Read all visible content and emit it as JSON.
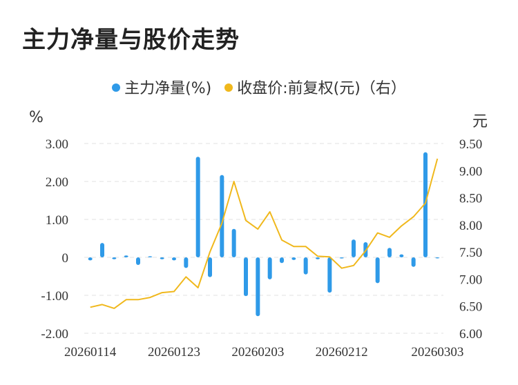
{
  "title": "主力净量与股价走势",
  "legend": [
    {
      "label": "主力净量(%)",
      "color": "#2f9ae8"
    },
    {
      "label": "收盘价:前复权(元)（右）",
      "color": "#f0b81c"
    }
  ],
  "units": {
    "left": "%",
    "right": "元"
  },
  "colors": {
    "bar": "#2f9ae8",
    "line": "#f0b81c",
    "grid": "#e2e2e2"
  },
  "chart_data": {
    "type": "bar+line",
    "x": [
      "20260114",
      "20260115",
      "20260116",
      "20260119",
      "20260120",
      "20260121",
      "20260122",
      "20260123",
      "20260126",
      "20260127",
      "20260128",
      "20260129",
      "20260130",
      "20260202",
      "20260203",
      "20260204",
      "20260205",
      "20260206",
      "20260209",
      "20260210",
      "20260211",
      "20260212",
      "20260213",
      "20260216",
      "20260224",
      "20260225",
      "20260226",
      "20260227",
      "20260302",
      "20260303"
    ],
    "x_tick_labels": [
      "20260114",
      "20260123",
      "20260203",
      "20260212",
      "20260303"
    ],
    "series": [
      {
        "name": "主力净量(%)",
        "type": "bar",
        "axis": "left",
        "values": [
          -0.08,
          0.38,
          -0.05,
          0.05,
          -0.2,
          0.03,
          -0.05,
          -0.08,
          -0.28,
          2.65,
          -0.52,
          2.17,
          0.75,
          -1.02,
          -1.55,
          -0.58,
          -0.15,
          -0.07,
          -0.45,
          -0.05,
          -0.93,
          -0.03,
          0.47,
          0.4,
          -0.68,
          0.25,
          0.08,
          -0.25,
          2.77,
          0
        ]
      },
      {
        "name": "收盘价:前复权(元)（右）",
        "type": "line",
        "axis": "right",
        "values": [
          6.48,
          6.53,
          6.46,
          6.62,
          6.62,
          6.66,
          6.75,
          6.77,
          7.04,
          6.84,
          7.5,
          8.03,
          8.8,
          8.08,
          7.92,
          8.24,
          7.72,
          7.6,
          7.6,
          7.42,
          7.41,
          7.2,
          7.25,
          7.52,
          7.85,
          7.77,
          7.98,
          8.15,
          8.4,
          9.22
        ]
      }
    ],
    "y_left": {
      "ticks": [
        "3.00",
        "2.00",
        "1.00",
        "0",
        "-1.00",
        "-2.00"
      ],
      "range": [
        -2,
        3
      ]
    },
    "y_right": {
      "ticks": [
        "9.50",
        "9.00",
        "8.50",
        "8.00",
        "7.50",
        "7.00",
        "6.50",
        "6.00"
      ],
      "range": [
        6,
        9.5
      ]
    },
    "grid": "horizontal-dashed",
    "legend_position": "top-center"
  }
}
